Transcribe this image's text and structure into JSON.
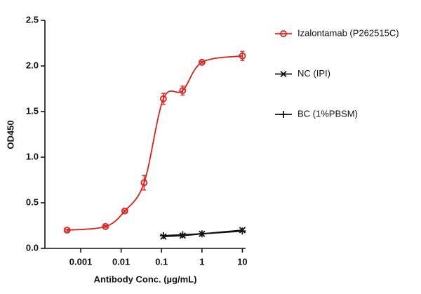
{
  "chart_data": {
    "type": "scatter",
    "x_label": "Antibody Conc. (µg/mL)",
    "y_label": "OD450",
    "log_x": true,
    "xlim": [
      0.00013,
      12
    ],
    "xticks": [
      0.001,
      0.01,
      0.1,
      1,
      10
    ],
    "ylim": [
      0,
      2.5
    ],
    "yticks": [
      {
        "value": 0,
        "label": "0.0"
      },
      0.5,
      {
        "value": 1,
        "label": "1.0"
      },
      1.5,
      {
        "value": 2,
        "label": "2.0"
      },
      2.5
    ],
    "series": [
      {
        "name": "Izalontamab (P262515C)",
        "color": "#e0201b",
        "marker": "circle",
        "x": [
          0.00046,
          0.0041,
          0.0123,
          0.037,
          0.111,
          0.333,
          1,
          10
        ],
        "values": [
          0.2,
          0.24,
          0.41,
          0.72,
          1.64,
          1.73,
          2.04,
          2.11
        ],
        "errors": [
          0.01,
          0.01,
          0.01,
          0.08,
          0.06,
          0.05,
          0.01,
          0.05
        ]
      },
      {
        "name": "NC (IPI)",
        "color": "#111111",
        "marker": "x",
        "x": [
          0.111,
          0.333,
          1,
          10
        ],
        "values": [
          0.13,
          0.14,
          0.16,
          0.2
        ]
      },
      {
        "name": "BC (1%PBSM)",
        "color": "#111111",
        "marker": "plus",
        "x": [
          0.111,
          0.333,
          1,
          10
        ],
        "values": [
          0.14,
          0.15,
          0.16,
          0.19
        ]
      }
    ]
  }
}
